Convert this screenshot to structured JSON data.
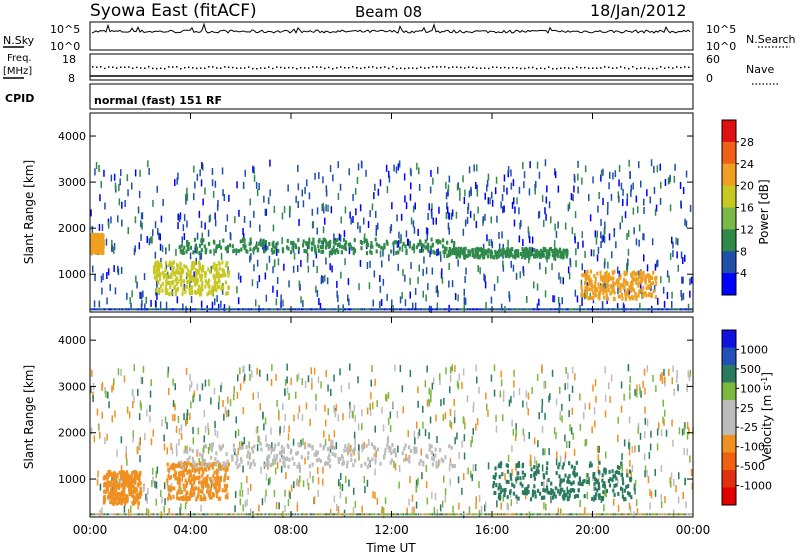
{
  "header": {
    "station": "Syowa East (fitACF)",
    "beam": "Beam 08",
    "date": "18/Jan/2012"
  },
  "noise_panel": {
    "left_label": "N.Sky",
    "right_label": "N.Search",
    "tick_top": "10^5",
    "tick_bottom": "10^0",
    "right_tick_top": "10^5",
    "right_tick_bottom": "10^0"
  },
  "freq_panel": {
    "left_label_1": "Freq.",
    "left_label_2": "[MHz]",
    "right_label": "Nave",
    "left_ticks": [
      "18",
      "8"
    ],
    "right_ticks": [
      "60",
      "0"
    ]
  },
  "cpid_panel": {
    "left_label": "CPID",
    "mode_text": "normal (fast) 151 RF"
  },
  "colors": {
    "power_scale": [
      "#0000ff",
      "#1f4fa8",
      "#2f8a4a",
      "#7ab84a",
      "#c8c820",
      "#f0a020",
      "#f06018",
      "#e01010"
    ],
    "velocity_scale": [
      "#1010e0",
      "#2050b8",
      "#2a7a60",
      "#7ab840",
      "#bcbcbc",
      "#bcbcbc",
      "#f09020",
      "#f06010",
      "#e03010",
      "#e00000"
    ]
  },
  "chart_data": [
    {
      "type": "heatmap",
      "panel": "power",
      "ylabel": "Slant Range [km]",
      "yticks": [
        "1000",
        "2000",
        "3000",
        "4000"
      ],
      "ylim": [
        180,
        4500
      ],
      "colorbar_label": "Power [dB]",
      "colorbar_ticks": [
        "4",
        "8",
        "12",
        "16",
        "20",
        "24",
        "28"
      ],
      "colorbar_range": [
        0,
        30
      ],
      "features": [
        {
          "x_hours": [
            0.0,
            0.5
          ],
          "range_km": [
            1500,
            1900
          ],
          "power_db": 20
        },
        {
          "x_hours": [
            2.5,
            5.5
          ],
          "range_km": [
            600,
            1300
          ],
          "power_db": 18
        },
        {
          "x_hours": [
            3.5,
            14.5
          ],
          "range_km": [
            1500,
            1800
          ],
          "power_db": 8
        },
        {
          "x_hours": [
            14.0,
            19.0
          ],
          "range_km": [
            1400,
            1600
          ],
          "power_db": 10
        },
        {
          "x_hours": [
            19.5,
            22.5
          ],
          "range_km": [
            500,
            1100
          ],
          "power_db": 22
        }
      ]
    },
    {
      "type": "heatmap",
      "panel": "velocity",
      "ylabel": "Slant Range [km]",
      "yticks": [
        "1000",
        "2000",
        "3000",
        "4000"
      ],
      "ylim": [
        180,
        4500
      ],
      "colorbar_label": "Velocity [m s^-1]",
      "colorbar_ticks": [
        "1000",
        "500",
        "100",
        "25",
        "-25",
        "-100",
        "-500",
        "-1000"
      ],
      "colorbar_range": [
        -1250,
        1250
      ],
      "features": [
        {
          "x_hours": [
            0.5,
            2.0
          ],
          "range_km": [
            500,
            1200
          ],
          "velocity_ms": -300
        },
        {
          "x_hours": [
            3.0,
            5.5
          ],
          "range_km": [
            600,
            1400
          ],
          "velocity_ms": -400
        },
        {
          "x_hours": [
            3.5,
            14.5
          ],
          "range_km": [
            1300,
            1800
          ],
          "velocity_ms": 0
        },
        {
          "x_hours": [
            16.0,
            21.5
          ],
          "range_km": [
            600,
            1400
          ],
          "velocity_ms": 300
        }
      ],
      "xlabel": "Time UT",
      "xticks": [
        "00:00",
        "04:00",
        "08:00",
        "12:00",
        "16:00",
        "20:00",
        "00:00"
      ],
      "xlim": [
        0,
        24
      ]
    }
  ]
}
